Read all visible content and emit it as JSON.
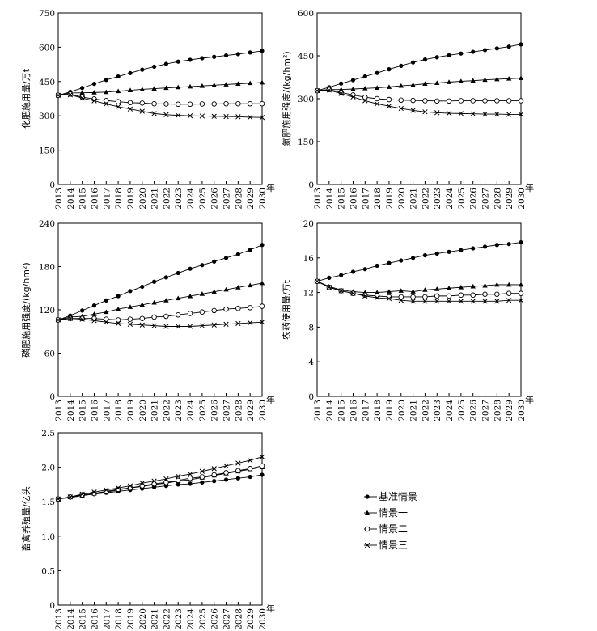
{
  "chart_data": [
    {
      "type": "line",
      "ylabel": "化肥施用量/万t",
      "xlabel": "年",
      "categories": [
        "2013",
        "2014",
        "2015",
        "2016",
        "2017",
        "2018",
        "2019",
        "2020",
        "2021",
        "2022",
        "2023",
        "2024",
        "2025",
        "2026",
        "2027",
        "2028",
        "2029",
        "2030"
      ],
      "ylim": [
        0,
        750
      ],
      "yticks": [
        0,
        150,
        300,
        450,
        600,
        750
      ],
      "grid": false,
      "series": [
        {
          "name": "基准情景",
          "marker": "dot",
          "values": [
            390,
            405,
            422,
            440,
            457,
            472,
            487,
            502,
            515,
            527,
            537,
            545,
            552,
            558,
            564,
            570,
            577,
            584
          ]
        },
        {
          "name": "情景一",
          "marker": "triangle",
          "values": [
            390,
            400,
            401,
            402,
            404,
            408,
            412,
            416,
            419,
            422,
            425,
            428,
            431,
            434,
            437,
            440,
            443,
            446
          ]
        },
        {
          "name": "情景二",
          "marker": "circle",
          "values": [
            390,
            395,
            382,
            374,
            367,
            362,
            358,
            356,
            353,
            352,
            351,
            351,
            352,
            352,
            353,
            353,
            353,
            353
          ]
        },
        {
          "name": "情景三",
          "marker": "cross",
          "values": [
            390,
            392,
            378,
            366,
            352,
            340,
            330,
            320,
            310,
            305,
            302,
            300,
            299,
            298,
            297,
            296,
            294,
            293
          ]
        }
      ]
    },
    {
      "type": "line",
      "ylabel": "氮肥施用强度/(kg/hm²)",
      "xlabel": "年",
      "categories": [
        "2013",
        "2014",
        "2015",
        "2016",
        "2017",
        "2018",
        "2019",
        "2020",
        "2021",
        "2022",
        "2023",
        "2024",
        "2025",
        "2026",
        "2027",
        "2028",
        "2029",
        "2030"
      ],
      "ylim": [
        0,
        600
      ],
      "yticks": [
        0,
        150,
        300,
        450,
        600
      ],
      "grid": false,
      "series": [
        {
          "name": "基准情景",
          "marker": "dot",
          "values": [
            328,
            340,
            353,
            365,
            378,
            390,
            403,
            415,
            427,
            437,
            445,
            452,
            458,
            464,
            470,
            476,
            482,
            490
          ]
        },
        {
          "name": "情景一",
          "marker": "triangle",
          "values": [
            328,
            332,
            332,
            334,
            336,
            338,
            341,
            345,
            348,
            352,
            355,
            358,
            361,
            363,
            366,
            368,
            370,
            372
          ]
        },
        {
          "name": "情景二",
          "marker": "circle",
          "values": [
            328,
            332,
            322,
            313,
            305,
            300,
            297,
            295,
            294,
            293,
            292,
            292,
            293,
            293,
            293,
            293,
            293,
            293
          ]
        },
        {
          "name": "情景三",
          "marker": "cross",
          "values": [
            328,
            330,
            318,
            306,
            293,
            282,
            274,
            266,
            259,
            254,
            251,
            249,
            248,
            247,
            246,
            246,
            245,
            245
          ]
        }
      ]
    },
    {
      "type": "line",
      "ylabel": "磷肥施用强度/(kg/hm²)",
      "xlabel": "年",
      "categories": [
        "2013",
        "2014",
        "2015",
        "2016",
        "2017",
        "2018",
        "2019",
        "2020",
        "2021",
        "2022",
        "2023",
        "2024",
        "2025",
        "2026",
        "2027",
        "2028",
        "2029",
        "2030"
      ],
      "ylim": [
        0,
        240
      ],
      "yticks": [
        0,
        60,
        120,
        180,
        240
      ],
      "grid": false,
      "series": [
        {
          "name": "基准情景",
          "marker": "dot",
          "values": [
            106,
            112,
            119,
            126,
            133,
            139,
            146,
            152,
            159,
            165,
            171,
            177,
            182,
            187,
            192,
            197,
            203,
            210
          ]
        },
        {
          "name": "情景一",
          "marker": "triangle",
          "values": [
            106,
            110,
            111,
            114,
            117,
            121,
            124,
            127,
            130,
            133,
            136,
            139,
            142,
            145,
            148,
            151,
            154,
            157
          ]
        },
        {
          "name": "情景二",
          "marker": "circle",
          "values": [
            106,
            108,
            108,
            108,
            107,
            106,
            107,
            108,
            110,
            111,
            113,
            115,
            117,
            119,
            121,
            122,
            123,
            125
          ]
        },
        {
          "name": "情景三",
          "marker": "cross",
          "values": [
            106,
            108,
            107,
            105,
            103,
            101,
            100,
            99,
            98,
            97,
            97,
            97,
            98,
            99,
            100,
            101,
            102,
            103
          ]
        }
      ]
    },
    {
      "type": "line",
      "ylabel": "农药使用量/万t",
      "xlabel": "年",
      "categories": [
        "2013",
        "2014",
        "2015",
        "2016",
        "2017",
        "2018",
        "2019",
        "2020",
        "2021",
        "2022",
        "2023",
        "2024",
        "2025",
        "2026",
        "2027",
        "2028",
        "2029",
        "2030"
      ],
      "ylim": [
        0,
        20
      ],
      "yticks": [
        0,
        4,
        8,
        12,
        16,
        20
      ],
      "grid": false,
      "series": [
        {
          "name": "基准情景",
          "marker": "dot",
          "values": [
            13.3,
            13.7,
            14.0,
            14.4,
            14.7,
            15.1,
            15.4,
            15.7,
            16.0,
            16.3,
            16.5,
            16.7,
            16.9,
            17.1,
            17.3,
            17.5,
            17.6,
            17.8
          ]
        },
        {
          "name": "情景一",
          "marker": "triangle",
          "values": [
            13.3,
            12.7,
            12.3,
            12.1,
            12.0,
            12.0,
            12.1,
            12.2,
            12.1,
            12.3,
            12.4,
            12.5,
            12.6,
            12.7,
            12.8,
            12.9,
            12.9,
            12.9
          ]
        },
        {
          "name": "情景二",
          "marker": "circle",
          "values": [
            13.3,
            12.6,
            12.2,
            11.9,
            11.7,
            11.6,
            11.5,
            11.5,
            11.5,
            11.5,
            11.6,
            11.6,
            11.7,
            11.7,
            11.8,
            11.8,
            11.9,
            11.9
          ]
        },
        {
          "name": "情景三",
          "marker": "cross",
          "values": [
            13.3,
            12.6,
            12.2,
            11.9,
            11.6,
            11.4,
            11.3,
            11.1,
            11.0,
            11.0,
            11.0,
            11.0,
            11.0,
            11.0,
            11.0,
            11.0,
            11.1,
            11.1
          ]
        }
      ]
    },
    {
      "type": "line",
      "ylabel": "畜禽养殖量/亿头",
      "xlabel": "年",
      "categories": [
        "2013",
        "2014",
        "2015",
        "2016",
        "2017",
        "2018",
        "2019",
        "2020",
        "2021",
        "2022",
        "2023",
        "2024",
        "2025",
        "2026",
        "2027",
        "2028",
        "2029",
        "2030"
      ],
      "ylim": [
        0,
        2.5
      ],
      "yticks": [
        "0",
        "0.5",
        "1.0",
        "1.5",
        "2.0",
        "2.5"
      ],
      "grid": false,
      "series": [
        {
          "name": "基准情景",
          "marker": "dot",
          "values": [
            1.54,
            1.56,
            1.59,
            1.61,
            1.63,
            1.65,
            1.67,
            1.69,
            1.71,
            1.73,
            1.75,
            1.76,
            1.78,
            1.8,
            1.82,
            1.84,
            1.86,
            1.89
          ]
        },
        {
          "name": "情景一",
          "marker": "triangle",
          "values": [
            1.54,
            1.57,
            1.59,
            1.62,
            1.64,
            1.67,
            1.7,
            1.72,
            1.75,
            1.77,
            1.8,
            1.82,
            1.85,
            1.88,
            1.91,
            1.94,
            1.97,
            2.0
          ]
        },
        {
          "name": "情景二",
          "marker": "circle",
          "values": [
            1.54,
            1.57,
            1.6,
            1.62,
            1.65,
            1.68,
            1.7,
            1.73,
            1.76,
            1.78,
            1.81,
            1.84,
            1.86,
            1.89,
            1.92,
            1.95,
            1.98,
            2.02
          ]
        },
        {
          "name": "情景三",
          "marker": "cross",
          "values": [
            1.54,
            1.57,
            1.61,
            1.64,
            1.67,
            1.7,
            1.73,
            1.77,
            1.8,
            1.83,
            1.87,
            1.9,
            1.94,
            1.98,
            2.02,
            2.06,
            2.1,
            2.15
          ]
        }
      ]
    }
  ],
  "legend": {
    "items": [
      {
        "label": "基准情景",
        "marker": "dot"
      },
      {
        "label": "情景一",
        "marker": "triangle"
      },
      {
        "label": "情景二",
        "marker": "circle"
      },
      {
        "label": "情景三",
        "marker": "cross"
      }
    ]
  }
}
